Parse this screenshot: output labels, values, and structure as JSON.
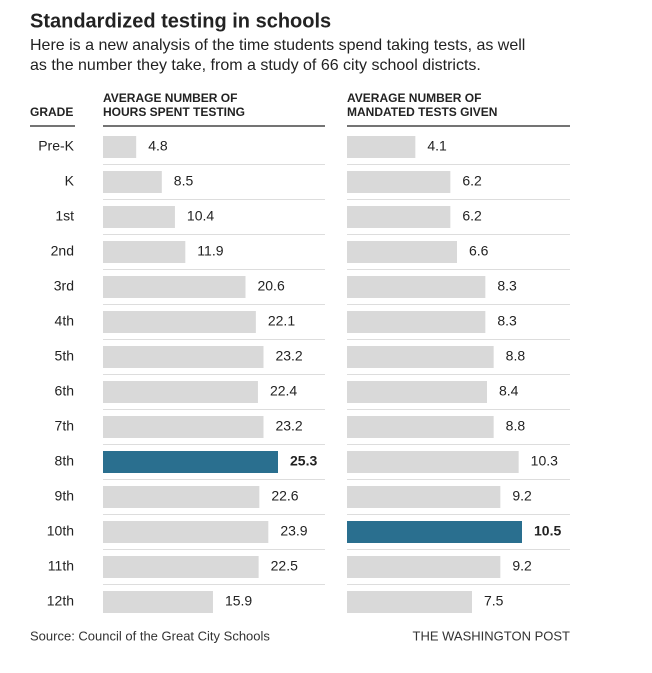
{
  "chart_data": {
    "type": "bar",
    "title": "Standardized testing in schools",
    "subtitle": [
      "Here is a new analysis of the time students spend taking tests, as well",
      "as the number they take, from a study of 66 city school districts."
    ],
    "category_label": "GRADE",
    "categories": [
      "Pre-K",
      "K",
      "1st",
      "2nd",
      "3rd",
      "4th",
      "5th",
      "6th",
      "7th",
      "8th",
      "9th",
      "10th",
      "11th",
      "12th"
    ],
    "panels": [
      {
        "name": [
          "AVERAGE NUMBER OF",
          "HOURS SPENT TESTING"
        ],
        "values": [
          4.8,
          8.5,
          10.4,
          11.9,
          20.6,
          22.1,
          23.2,
          22.4,
          23.2,
          25.3,
          22.6,
          23.9,
          22.5,
          15.9
        ],
        "colors": [
          "#d9d9d9",
          "#d9d9d9",
          "#d9d9d9",
          "#d9d9d9",
          "#d9d9d9",
          "#d9d9d9",
          "#d9d9d9",
          "#d9d9d9",
          "#d9d9d9",
          "#2a6f8f",
          "#d9d9d9",
          "#d9d9d9",
          "#d9d9d9",
          "#d9d9d9"
        ]
      },
      {
        "name": [
          "AVERAGE NUMBER OF",
          "MANDATED TESTS GIVEN"
        ],
        "values": [
          4.1,
          6.2,
          6.2,
          6.6,
          8.3,
          8.3,
          8.8,
          8.4,
          8.8,
          10.3,
          9.2,
          10.5,
          9.2,
          7.5
        ],
        "colors": [
          "#d9d9d9",
          "#d9d9d9",
          "#d9d9d9",
          "#d9d9d9",
          "#d9d9d9",
          "#d9d9d9",
          "#d9d9d9",
          "#d9d9d9",
          "#d9d9d9",
          "#d9d9d9",
          "#d9d9d9",
          "#2a6f8f",
          "#d9d9d9",
          "#d9d9d9"
        ]
      }
    ],
    "source": "Source: Council of the Great City Schools",
    "credit": "THE WASHINGTON POST"
  }
}
